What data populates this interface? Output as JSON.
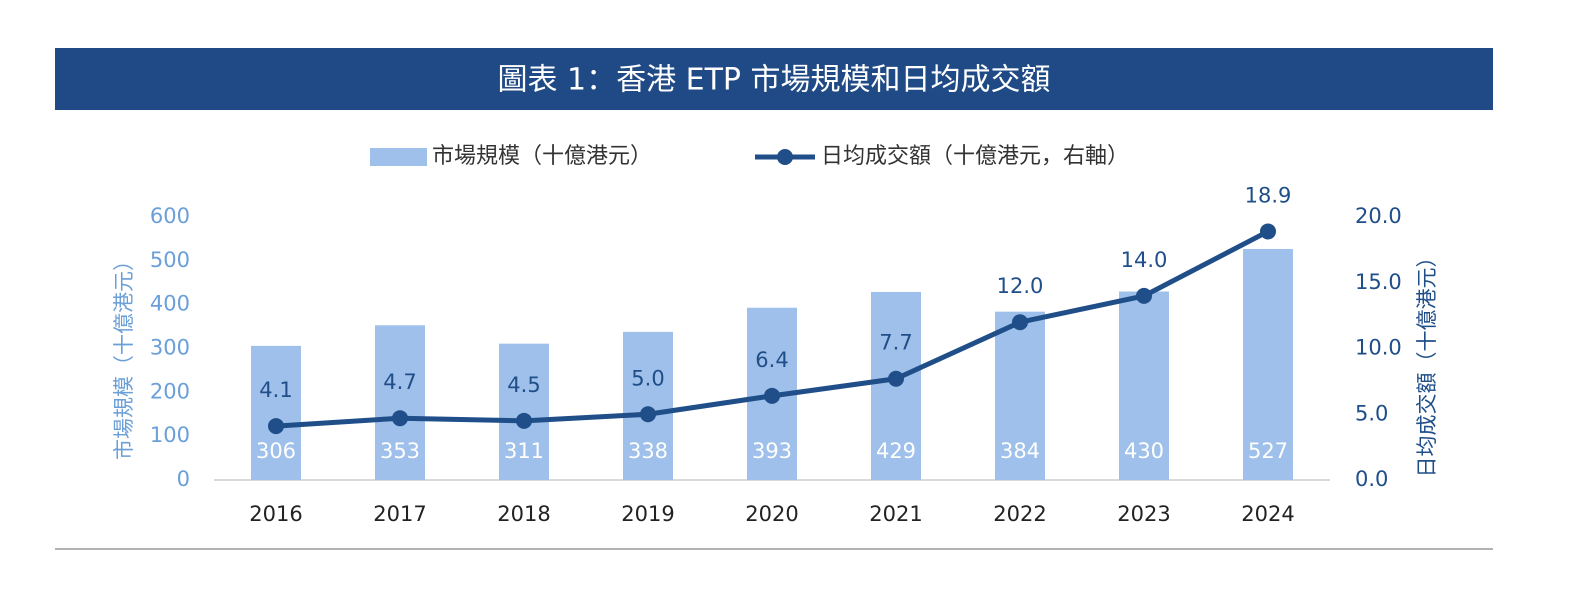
{
  "chart_data": {
    "type": "combo",
    "title": "圖表 1：香港 ETP 市場規模和日均成交額",
    "categories": [
      "2016",
      "2017",
      "2018",
      "2019",
      "2020",
      "2021",
      "2022",
      "2023",
      "2024"
    ],
    "series": [
      {
        "name": "市場規模（十億港元）",
        "type": "bar",
        "color": "#9ec0ea",
        "values": [
          306,
          353,
          311,
          338,
          393,
          429,
          384,
          430,
          527
        ]
      },
      {
        "name": "日均成交額（十億港元，右軸）",
        "type": "line",
        "axis": "y2",
        "color": "#1f4e89",
        "values": [
          4.1,
          4.7,
          4.5,
          5.0,
          6.4,
          7.7,
          12.0,
          14.0,
          18.9
        ],
        "value_labels": [
          "4.1",
          "4.7",
          "4.5",
          "5.0",
          "6.4",
          "7.7",
          "12.0",
          "14.0",
          "18.9"
        ]
      }
    ],
    "ylabel": "市場規模（十億港元）",
    "y2label": "日均成交額（十億港元）",
    "ylim": [
      0,
      600
    ],
    "yticks": [
      0,
      100,
      200,
      300,
      400,
      500,
      600
    ],
    "y2lim": [
      0,
      20
    ],
    "y2ticks": [
      {
        "value": 0,
        "label": "0.0"
      },
      {
        "value": 5,
        "label": "5.0"
      },
      {
        "value": 10,
        "label": "10.0"
      },
      {
        "value": 15,
        "label": "15.0"
      },
      {
        "value": 20,
        "label": "20.0"
      }
    ],
    "grid": false,
    "legend": "top"
  }
}
